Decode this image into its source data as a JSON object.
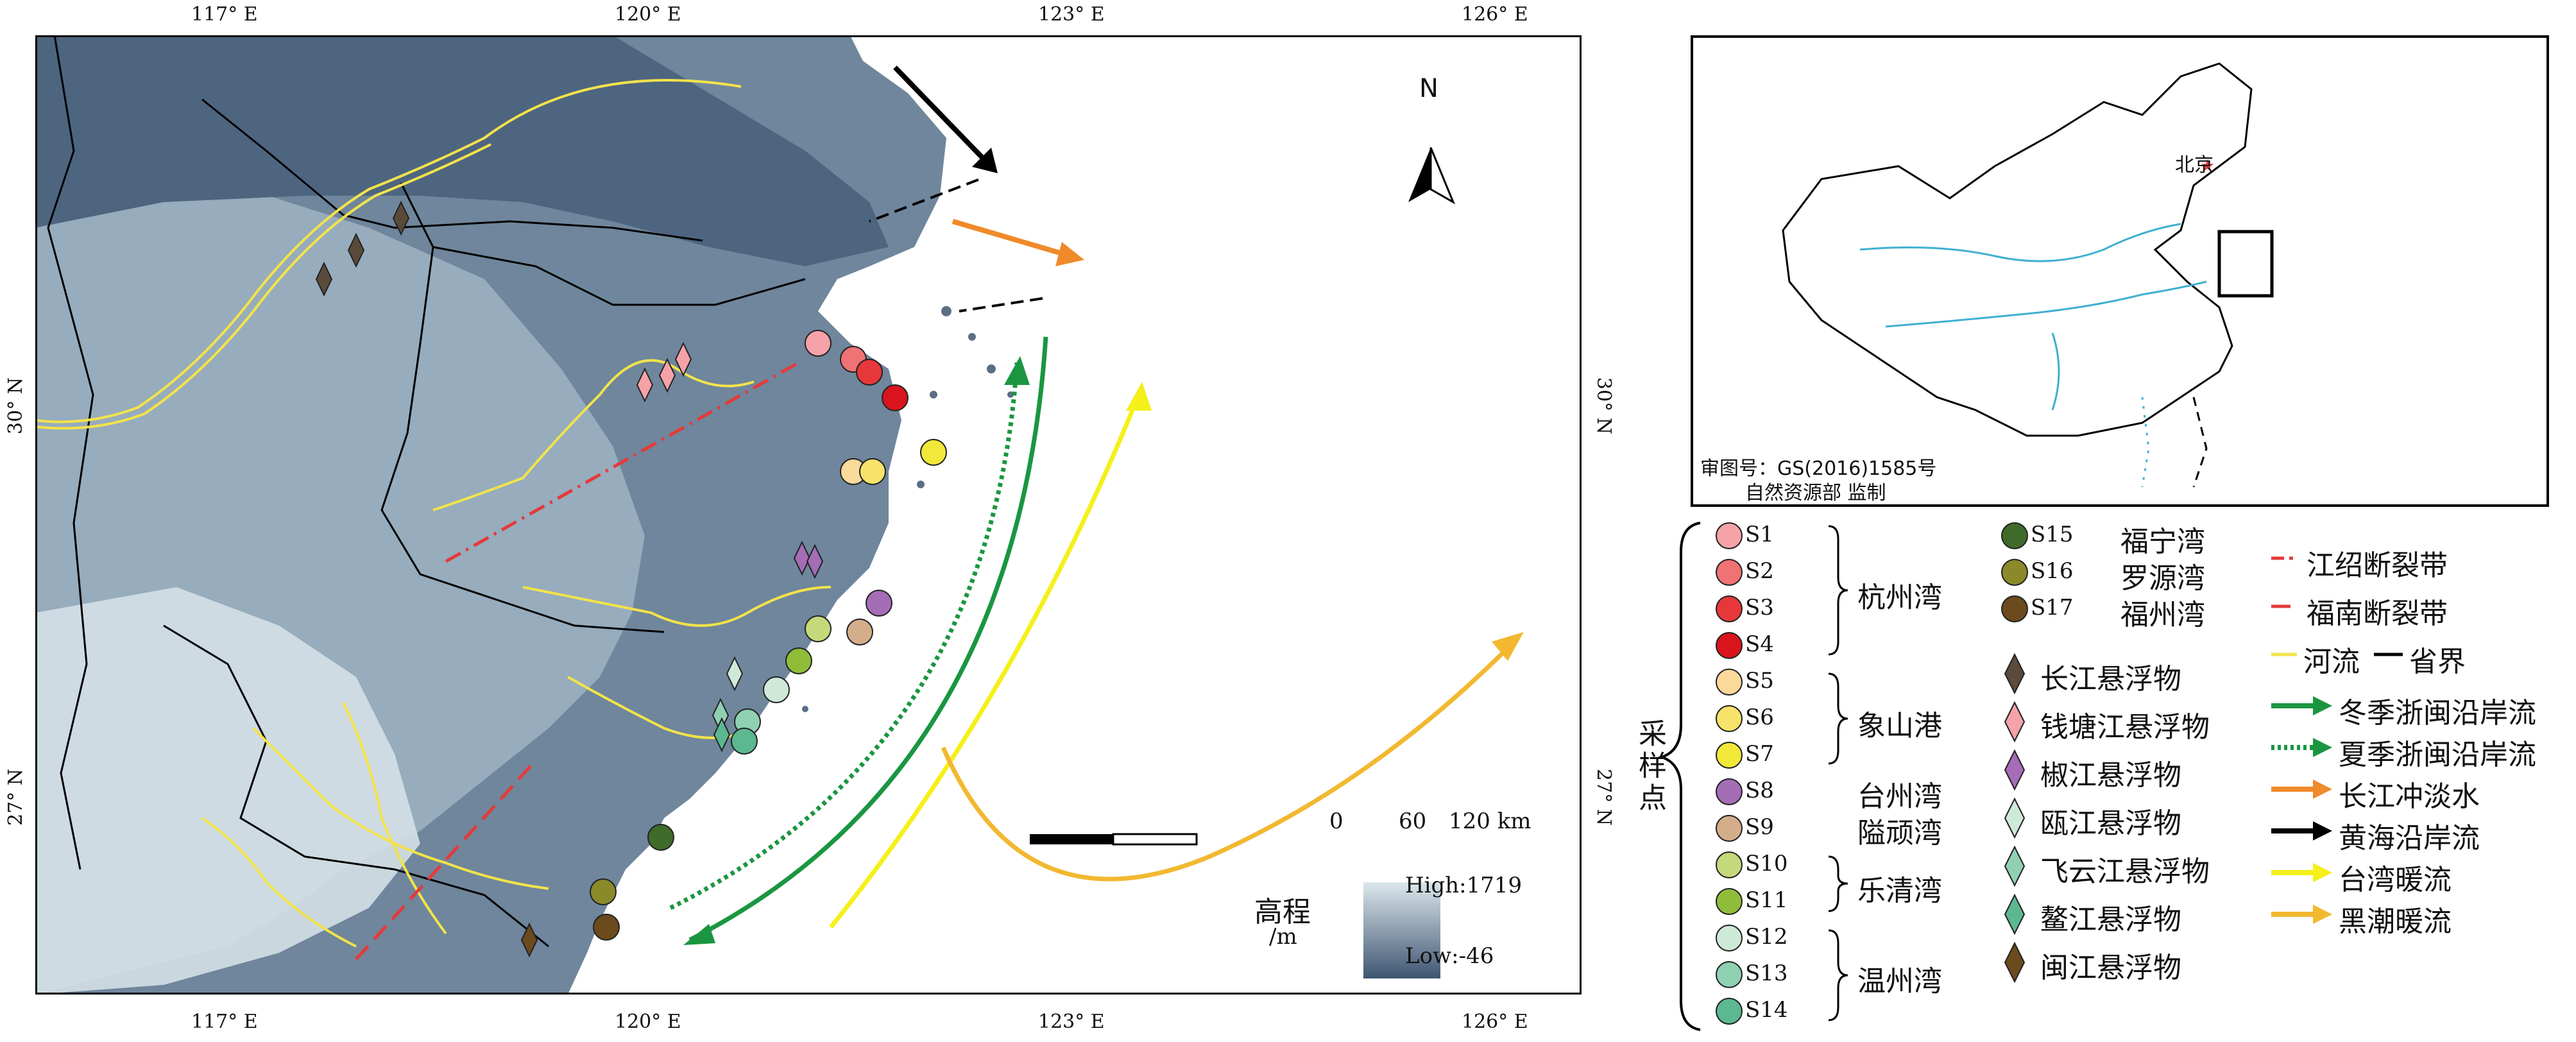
{
  "axes": {
    "lon_labels": [
      "117° E",
      "120° E",
      "123° E",
      "126° E"
    ],
    "lat_labels": [
      "30° N",
      "27° N"
    ]
  },
  "north_arrow": {
    "label": "N"
  },
  "scale_bar": {
    "ticks": [
      "0",
      "60",
      "120 km"
    ]
  },
  "elevation_legend": {
    "title_line1": "高程",
    "title_line2": "/m",
    "high": "High:1719",
    "low": "Low:-46"
  },
  "inset": {
    "capital_label": "北京",
    "caption_line1": "审图号：GS(2016)1585号",
    "caption_line2": "自然资源部 监制"
  },
  "legend": {
    "group_title": "采样点",
    "stations": [
      {
        "id": "S1",
        "color": "#f5a3a8",
        "shape": "circle"
      },
      {
        "id": "S2",
        "color": "#ef7274",
        "shape": "circle"
      },
      {
        "id": "S3",
        "color": "#e6383a",
        "shape": "circle"
      },
      {
        "id": "S4",
        "color": "#d9141c",
        "shape": "circle"
      },
      {
        "id": "S5",
        "color": "#fbd99a",
        "shape": "circle"
      },
      {
        "id": "S6",
        "color": "#f8e36a",
        "shape": "circle"
      },
      {
        "id": "S7",
        "color": "#f2e83a",
        "shape": "circle"
      },
      {
        "id": "S8",
        "color": "#a46db6",
        "shape": "circle"
      },
      {
        "id": "S9",
        "color": "#d4ae8a",
        "shape": "circle"
      },
      {
        "id": "S10",
        "color": "#c4d97a",
        "shape": "circle"
      },
      {
        "id": "S11",
        "color": "#8fbd3a",
        "shape": "circle"
      },
      {
        "id": "S12",
        "color": "#cfe9d8",
        "shape": "circle"
      },
      {
        "id": "S13",
        "color": "#8fd0b3",
        "shape": "circle"
      },
      {
        "id": "S14",
        "color": "#5cb891",
        "shape": "circle"
      }
    ],
    "station_groups": [
      {
        "label": "杭州湾"
      },
      {
        "label": "象山港"
      },
      {
        "label": "台州湾"
      },
      {
        "label": "隘顽湾"
      },
      {
        "label": "乐清湾"
      },
      {
        "label": "温州湾"
      }
    ],
    "stations_b": [
      {
        "id": "S15",
        "color": "#3f6b2a",
        "name": "福宁湾"
      },
      {
        "id": "S16",
        "color": "#8a8a2a",
        "name": "罗源湾"
      },
      {
        "id": "S17",
        "color": "#6b4a1e",
        "name": "福州湾"
      }
    ],
    "particles": [
      {
        "label": "长江悬浮物",
        "color": "#5b4a3a"
      },
      {
        "label": "钱塘江悬浮物",
        "color": "#f5a3a8"
      },
      {
        "label": "椒江悬浮物",
        "color": "#a46db6"
      },
      {
        "label": "瓯江悬浮物",
        "color": "#cfe9d8"
      },
      {
        "label": "飞云江悬浮物",
        "color": "#8fd0b3"
      },
      {
        "label": "鳌江悬浮物",
        "color": "#5cb891"
      },
      {
        "label": "闽江悬浮物",
        "color": "#6b4a1e"
      }
    ],
    "lines": [
      {
        "label": "江绍断裂带",
        "color": "#e53a3a",
        "style": "dashdot"
      },
      {
        "label": "福南断裂带",
        "color": "#e53a3a",
        "style": "dash"
      },
      {
        "label": "河流",
        "color": "#f2e34a",
        "style": "solid"
      },
      {
        "label": "省界",
        "color": "#000000",
        "style": "solid"
      }
    ],
    "currents": [
      {
        "label": "冬季浙闽沿岸流",
        "color": "#1a9641",
        "style": "solid"
      },
      {
        "label": "夏季浙闽沿岸流",
        "color": "#1a9641",
        "style": "dotted"
      },
      {
        "label": "长江冲淡水",
        "color": "#f08a2a",
        "style": "solid"
      },
      {
        "label": "黄海沿岸流",
        "color": "#000000",
        "style": "solid"
      },
      {
        "label": "台湾暖流",
        "color": "#f5f01a",
        "style": "solid"
      },
      {
        "label": "黑潮暖流",
        "color": "#f2b830",
        "style": "solid"
      }
    ]
  }
}
